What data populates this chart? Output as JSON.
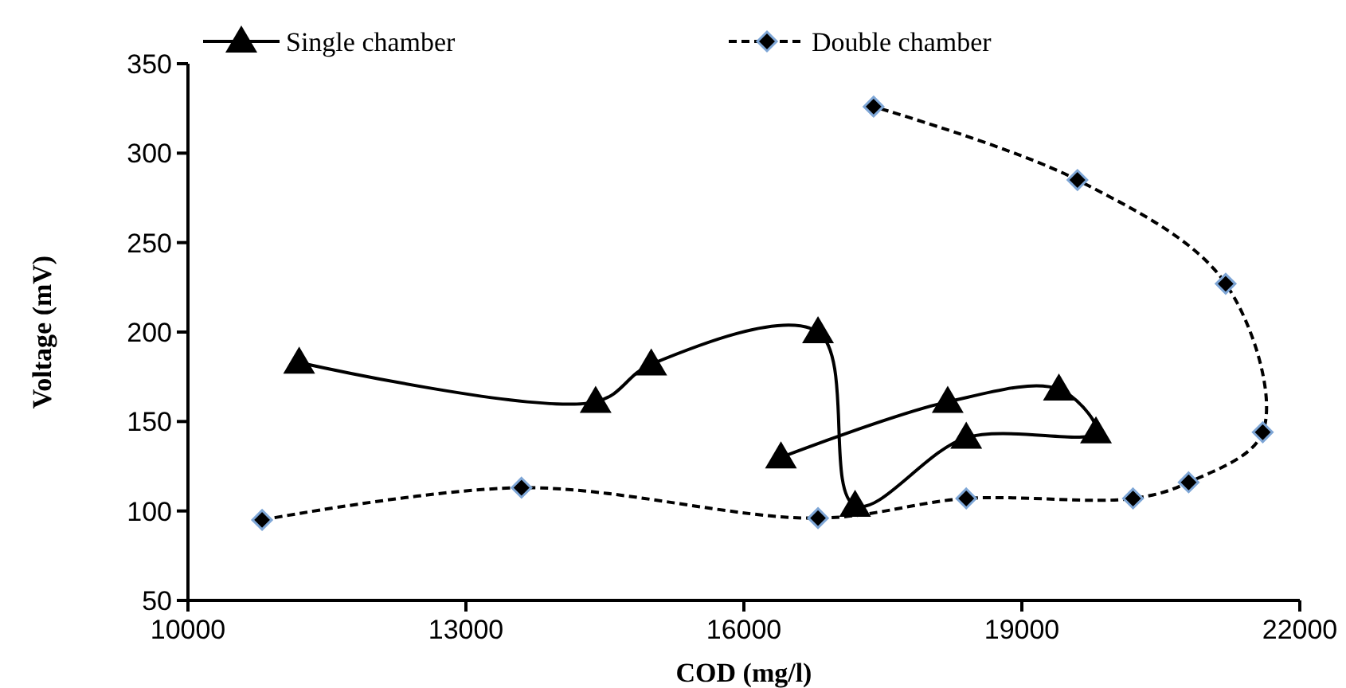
{
  "chart_data": {
    "type": "line",
    "xlabel": "COD (mg/l)",
    "ylabel": "Voltage (mV)",
    "xlim": [
      10000,
      22000
    ],
    "xticks": [
      10000,
      13000,
      16000,
      19000,
      22000
    ],
    "ylim": [
      50,
      350
    ],
    "yticks": [
      50,
      100,
      150,
      200,
      250,
      300,
      350
    ],
    "grid": false,
    "legend": "top",
    "series": [
      {
        "name": "Single chamber",
        "color": "#000000",
        "marker": "triangle",
        "line_style": "solid",
        "x": [
          11200,
          14400,
          15000,
          16800,
          17200,
          18400,
          19800,
          19400,
          18200,
          16400
        ],
        "values": [
          183,
          161,
          182,
          200,
          103,
          141,
          144,
          168,
          161,
          130
        ]
      },
      {
        "name": "Double chamber",
        "color": "#000000",
        "marker": "diamond",
        "line_style": "dashed",
        "x": [
          10800,
          13600,
          16800,
          18400,
          20200,
          20800,
          21600,
          21200,
          19600,
          17400
        ],
        "values": [
          95,
          113,
          96,
          107,
          107,
          116,
          144,
          227,
          285,
          326
        ]
      }
    ]
  }
}
